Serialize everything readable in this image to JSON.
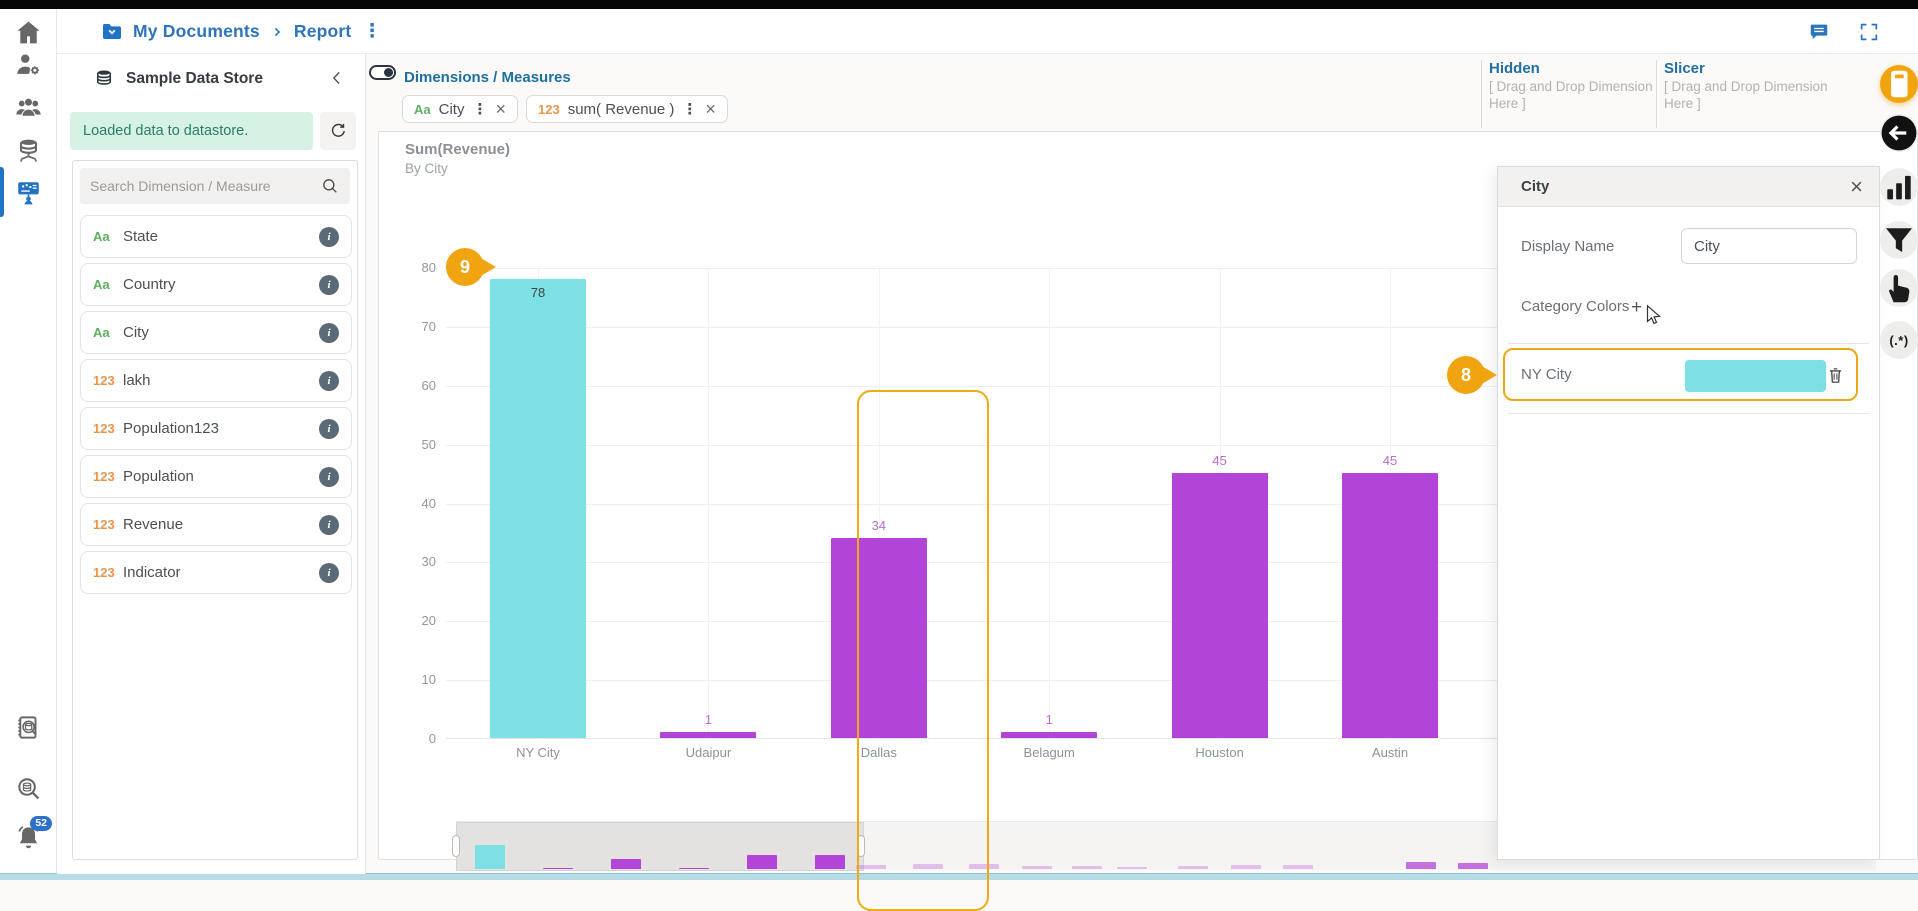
{
  "colors": {
    "accent_orange": "#f0a40f",
    "bar_purple": "#b344d8",
    "bar_cyan": "#7ce0e5",
    "link_blue": "#2e74bb",
    "section_blue": "#1f6f9f"
  },
  "topbar": {
    "breadcrumb": [
      "My Documents",
      "Report"
    ],
    "icons": [
      "comment",
      "fullscreen"
    ]
  },
  "left_rail": {
    "top_items": [
      {
        "icon": "home"
      },
      {
        "icon": "user-settings"
      },
      {
        "icon": "users-group"
      },
      {
        "icon": "datastore"
      },
      {
        "icon": "report-builder",
        "active": true
      }
    ],
    "bottom_items": [
      {
        "icon": "data-audit"
      },
      {
        "icon": "data-search"
      },
      {
        "icon": "notifications",
        "badge": "52"
      }
    ]
  },
  "datastore_panel": {
    "title": "Sample Data Store",
    "status": "Loaded data to datastore.",
    "search_placeholder": "Search Dimension / Measure",
    "fields": [
      {
        "kind": "dimension",
        "prefix": "Aa",
        "label": "State"
      },
      {
        "kind": "dimension",
        "prefix": "Aa",
        "label": "Country"
      },
      {
        "kind": "dimension",
        "prefix": "Aa",
        "label": "City"
      },
      {
        "kind": "measure",
        "prefix": "123",
        "label": "lakh"
      },
      {
        "kind": "measure",
        "prefix": "123",
        "label": "Population123"
      },
      {
        "kind": "measure",
        "prefix": "123",
        "label": "Population"
      },
      {
        "kind": "measure",
        "prefix": "123",
        "label": "Revenue"
      },
      {
        "kind": "measure",
        "prefix": "123",
        "label": "Indicator"
      }
    ]
  },
  "builder": {
    "title": "Dimensions / Measures",
    "chips": [
      {
        "kind": "dimension",
        "prefix": "Aa",
        "label": "City"
      },
      {
        "kind": "measure",
        "prefix": "123",
        "label": "sum( Revenue )"
      }
    ],
    "drop_zones": [
      {
        "title": "Hidden",
        "placeholder": "[ Drag and Drop Dimension Here ]"
      },
      {
        "title": "Slicer",
        "placeholder": "[ Drag and Drop Dimension Here ]"
      }
    ]
  },
  "chart_data": {
    "type": "bar",
    "title": "Sum(Revenue)",
    "subtitle": "By City",
    "categories": [
      "NY City",
      "Udaipur",
      "Dallas",
      "Belagum",
      "Houston",
      "Austin"
    ],
    "values": [
      78,
      1,
      34,
      1,
      45,
      45
    ],
    "bar_colors": [
      "#7ce0e5",
      "#b344d8",
      "#b344d8",
      "#b344d8",
      "#b344d8",
      "#b344d8"
    ],
    "ylim": [
      0,
      80
    ],
    "ytick_step": 10,
    "grid": true,
    "legend": false,
    "highlighted_category": "NY City"
  },
  "navigator": {
    "selected_categories": [
      "NY City",
      "Udaipur",
      "Dallas",
      "Belagum",
      "Houston",
      "Austin"
    ],
    "out_of_range_bars": [
      {
        "x": 855,
        "h": 4
      },
      {
        "x": 912,
        "h": 5
      },
      {
        "x": 968,
        "h": 5
      },
      {
        "x": 1021,
        "h": 3
      },
      {
        "x": 1071,
        "h": 3
      },
      {
        "x": 1116,
        "h": 2
      },
      {
        "x": 1177,
        "h": 3
      },
      {
        "x": 1230,
        "h": 4
      },
      {
        "x": 1282,
        "h": 4
      },
      {
        "x": 1405,
        "h": 7,
        "strong": true
      },
      {
        "x": 1457,
        "h": 6,
        "strong": true
      }
    ]
  },
  "config_panel": {
    "title": "City",
    "display_name_label": "Display Name",
    "display_name_value": "City",
    "category_colors_label": "Category Colors",
    "add_label": "+",
    "rows": [
      {
        "label": "NY City",
        "color": "#7ce0e5"
      }
    ]
  },
  "right_rail": {
    "items": [
      {
        "icon": "card",
        "active": true
      },
      {
        "icon": "back"
      },
      {
        "icon": "chart-bars"
      },
      {
        "icon": "filter"
      },
      {
        "icon": "hand"
      },
      {
        "icon": "regex",
        "text": "(.*)"
      }
    ]
  },
  "callouts": [
    {
      "number": "9"
    },
    {
      "number": "8"
    }
  ]
}
